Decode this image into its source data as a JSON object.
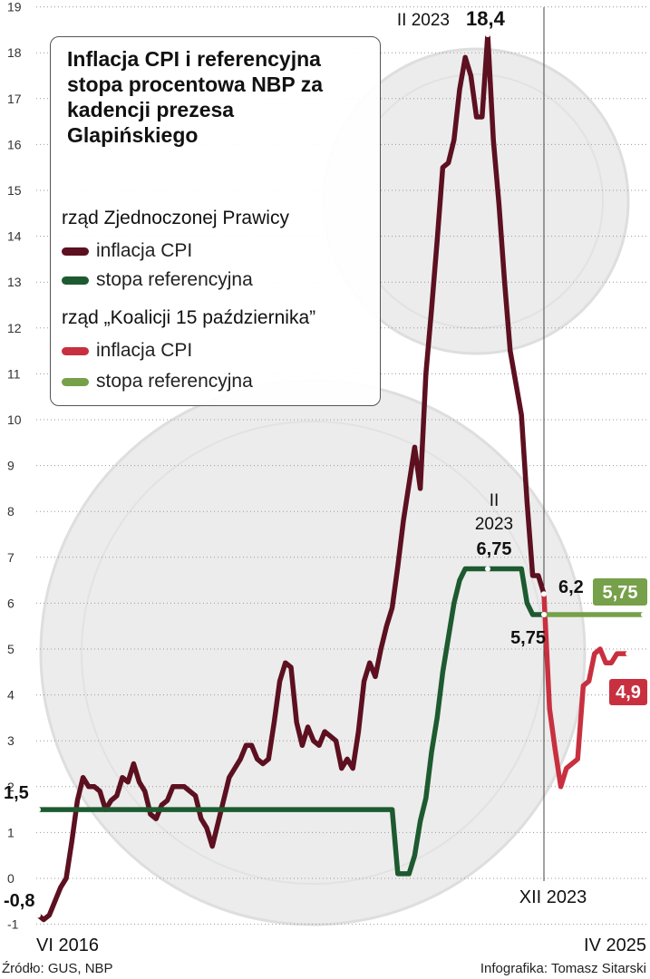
{
  "chart_data": {
    "type": "line",
    "title": "Inflacja CPI i referencyjna stopa procentowa NBP za kadencji prezesa Glapińskiego",
    "ylim": [
      -1,
      19
    ],
    "y_ticks": [
      "-1",
      "0",
      "1",
      "2",
      "3",
      "4",
      "5",
      "6",
      "7",
      "8",
      "9",
      "10",
      "11",
      "12",
      "13",
      "14",
      "15",
      "16",
      "17",
      "18",
      "19"
    ],
    "x_range": [
      "2016-06",
      "2025-04"
    ],
    "x_labels": [
      "VI 2016",
      "XII 2023",
      "IV 2025"
    ],
    "grid": true,
    "legend_position": "top-left",
    "legend": {
      "groups": [
        {
          "name": "rząd Zjednoczonej Prawicy",
          "items": [
            "inflacja CPI",
            "stopa referencyjna"
          ]
        },
        {
          "name": "rząd „Koalicji 15 października”",
          "items": [
            "inflacja CPI",
            "stopa referencyjna"
          ]
        }
      ]
    },
    "series": [
      {
        "name": "inflacja CPI",
        "group": "rząd Zjednoczonej Prawicy",
        "color": "#5c1020",
        "points": [
          [
            "2016-06",
            -0.8
          ],
          [
            "2016-07",
            -0.9
          ],
          [
            "2016-08",
            -0.8
          ],
          [
            "2016-09",
            -0.5
          ],
          [
            "2016-10",
            -0.2
          ],
          [
            "2016-11",
            0.0
          ],
          [
            "2016-12",
            0.8
          ],
          [
            "2017-01",
            1.7
          ],
          [
            "2017-02",
            2.2
          ],
          [
            "2017-03",
            2.0
          ],
          [
            "2017-04",
            2.0
          ],
          [
            "2017-05",
            1.9
          ],
          [
            "2017-06",
            1.5
          ],
          [
            "2017-07",
            1.7
          ],
          [
            "2017-08",
            1.8
          ],
          [
            "2017-09",
            2.2
          ],
          [
            "2017-10",
            2.1
          ],
          [
            "2017-11",
            2.5
          ],
          [
            "2017-12",
            2.1
          ],
          [
            "2018-01",
            1.9
          ],
          [
            "2018-02",
            1.4
          ],
          [
            "2018-03",
            1.3
          ],
          [
            "2018-04",
            1.6
          ],
          [
            "2018-05",
            1.7
          ],
          [
            "2018-06",
            2.0
          ],
          [
            "2018-07",
            2.0
          ],
          [
            "2018-08",
            2.0
          ],
          [
            "2018-09",
            1.9
          ],
          [
            "2018-10",
            1.8
          ],
          [
            "2018-11",
            1.3
          ],
          [
            "2018-12",
            1.1
          ],
          [
            "2019-01",
            0.7
          ],
          [
            "2019-02",
            1.2
          ],
          [
            "2019-03",
            1.7
          ],
          [
            "2019-04",
            2.2
          ],
          [
            "2019-05",
            2.4
          ],
          [
            "2019-06",
            2.6
          ],
          [
            "2019-07",
            2.9
          ],
          [
            "2019-08",
            2.9
          ],
          [
            "2019-09",
            2.6
          ],
          [
            "2019-10",
            2.5
          ],
          [
            "2019-11",
            2.6
          ],
          [
            "2019-12",
            3.4
          ],
          [
            "2020-01",
            4.3
          ],
          [
            "2020-02",
            4.7
          ],
          [
            "2020-03",
            4.6
          ],
          [
            "2020-04",
            3.4
          ],
          [
            "2020-05",
            2.9
          ],
          [
            "2020-06",
            3.3
          ],
          [
            "2020-07",
            3.0
          ],
          [
            "2020-08",
            2.9
          ],
          [
            "2020-09",
            3.2
          ],
          [
            "2020-10",
            3.1
          ],
          [
            "2020-11",
            3.0
          ],
          [
            "2020-12",
            2.4
          ],
          [
            "2021-01",
            2.6
          ],
          [
            "2021-02",
            2.4
          ],
          [
            "2021-03",
            3.2
          ],
          [
            "2021-04",
            4.3
          ],
          [
            "2021-05",
            4.7
          ],
          [
            "2021-06",
            4.4
          ],
          [
            "2021-07",
            5.0
          ],
          [
            "2021-08",
            5.5
          ],
          [
            "2021-09",
            5.9
          ],
          [
            "2021-10",
            6.8
          ],
          [
            "2021-11",
            7.8
          ],
          [
            "2021-12",
            8.6
          ],
          [
            "2022-01",
            9.4
          ],
          [
            "2022-02",
            8.5
          ],
          [
            "2022-03",
            11.0
          ],
          [
            "2022-04",
            12.4
          ],
          [
            "2022-05",
            13.9
          ],
          [
            "2022-06",
            15.5
          ],
          [
            "2022-07",
            15.6
          ],
          [
            "2022-08",
            16.1
          ],
          [
            "2022-09",
            17.2
          ],
          [
            "2022-10",
            17.9
          ],
          [
            "2022-11",
            17.5
          ],
          [
            "2022-12",
            16.6
          ],
          [
            "2023-01",
            16.6
          ],
          [
            "2023-02",
            18.4
          ],
          [
            "2023-03",
            16.1
          ],
          [
            "2023-04",
            14.7
          ],
          [
            "2023-05",
            13.0
          ],
          [
            "2023-06",
            11.5
          ],
          [
            "2023-07",
            10.8
          ],
          [
            "2023-08",
            10.1
          ],
          [
            "2023-09",
            8.2
          ],
          [
            "2023-10",
            6.6
          ],
          [
            "2023-11",
            6.6
          ],
          [
            "2023-12",
            6.2
          ]
        ]
      },
      {
        "name": "stopa referencyjna",
        "group": "rząd Zjednoczonej Prawicy",
        "color": "#1d5a30",
        "points": [
          [
            "2016-06",
            1.5
          ],
          [
            "2021-09",
            1.5
          ],
          [
            "2021-10",
            0.1
          ],
          [
            "2021-11",
            0.1
          ],
          [
            "2021-12",
            0.1
          ],
          [
            "2022-01",
            0.5
          ],
          [
            "2022-02",
            1.25
          ],
          [
            "2022-03",
            1.75
          ],
          [
            "2022-04",
            2.75
          ],
          [
            "2022-05",
            3.5
          ],
          [
            "2022-06",
            4.5
          ],
          [
            "2022-07",
            5.25
          ],
          [
            "2022-08",
            6.0
          ],
          [
            "2022-09",
            6.5
          ],
          [
            "2022-10",
            6.75
          ],
          [
            "2023-08",
            6.75
          ],
          [
            "2023-09",
            6.0
          ],
          [
            "2023-10",
            5.75
          ],
          [
            "2023-12",
            5.75
          ]
        ]
      },
      {
        "name": "inflacja CPI",
        "group": "rząd „Koalicji 15 października”",
        "color": "#c8303f",
        "points": [
          [
            "2023-12",
            6.2
          ],
          [
            "2024-01",
            3.7
          ],
          [
            "2024-02",
            2.8
          ],
          [
            "2024-03",
            2.0
          ],
          [
            "2024-04",
            2.4
          ],
          [
            "2024-05",
            2.5
          ],
          [
            "2024-06",
            2.6
          ],
          [
            "2024-07",
            4.2
          ],
          [
            "2024-08",
            4.3
          ],
          [
            "2024-09",
            4.9
          ],
          [
            "2024-10",
            5.0
          ],
          [
            "2024-11",
            4.7
          ],
          [
            "2024-12",
            4.7
          ],
          [
            "2025-01",
            4.9
          ],
          [
            "2025-02",
            4.9
          ],
          [
            "2025-03",
            4.9
          ]
        ]
      },
      {
        "name": "stopa referencyjna",
        "group": "rząd „Koalicji 15 października”",
        "color": "#76a04a",
        "points": [
          [
            "2023-12",
            5.75
          ],
          [
            "2025-04",
            5.75
          ]
        ]
      }
    ],
    "annotations": {
      "start_cpi": "-0,8",
      "start_rate": "1,5",
      "peak_cpi_date": "II 2023",
      "peak_cpi_value": "18,4",
      "peak_rate_date_line1": "II",
      "peak_rate_date_line2": "2023",
      "peak_rate_value": "6,75",
      "dec2023_cpi": "6,2",
      "dec2023_rate": "5,75",
      "end_rate": "5,75",
      "end_cpi": "4,9"
    },
    "divider_date": "2023-12"
  },
  "footer": {
    "source": "Źródło: GUS, NBP",
    "credit": "Infografika: Tomasz Sitarski"
  }
}
